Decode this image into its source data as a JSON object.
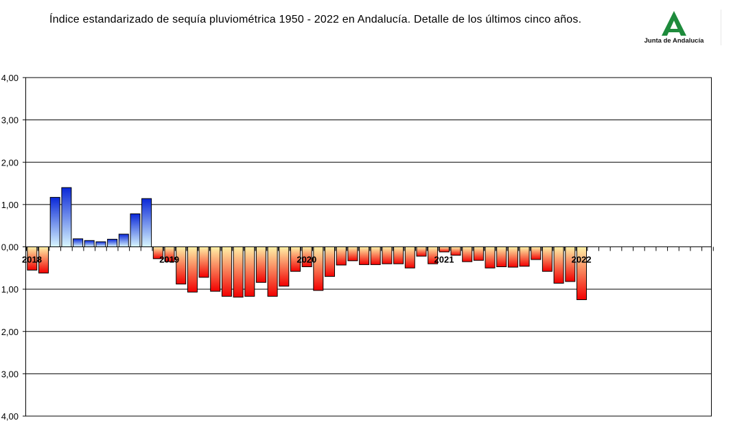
{
  "title": "Índice estandarizado de sequía pluviométrica 1950 - 2022 en Andalucía. Detalle de los últimos cinco años.",
  "logo": {
    "text": "Junta de Andalucía",
    "color": "#1e8b3c",
    "icon": "andalucia-a-icon"
  },
  "chart_data": {
    "type": "bar",
    "title": "Índice estandarizado de sequía pluviométrica 1950 - 2022 en Andalucía. Detalle de los últimos cinco años.",
    "xlabel": "",
    "ylabel": "",
    "ylim": [
      -4,
      4
    ],
    "yticks": [
      "4,00",
      "3,00",
      "2,00",
      "1,00",
      "0,00",
      "1,00",
      "2,00",
      "3,00",
      "4,00"
    ],
    "year_labels": [
      {
        "label": "2018",
        "index": 0
      },
      {
        "label": "2019",
        "index": 12
      },
      {
        "label": "2020",
        "index": 24
      },
      {
        "label": "2021",
        "index": 36
      },
      {
        "label": "2022",
        "index": 48
      }
    ],
    "total_slots": 60,
    "grid": true,
    "colors": {
      "positive_top": "#0a28d8",
      "positive_bottom": "#d8f6ff",
      "negative_top": "#fff2a8",
      "negative_bottom": "#f20000"
    },
    "values": [
      -0.55,
      -0.62,
      1.17,
      1.4,
      0.19,
      0.15,
      0.12,
      0.18,
      0.3,
      0.78,
      1.14,
      -0.28,
      -0.35,
      -0.88,
      -1.07,
      -0.72,
      -1.05,
      -1.17,
      -1.19,
      -1.17,
      -0.84,
      -1.17,
      -0.93,
      -0.58,
      -0.47,
      -1.03,
      -0.7,
      -0.43,
      -0.33,
      -0.42,
      -0.42,
      -0.4,
      -0.4,
      -0.5,
      -0.22,
      -0.4,
      -0.12,
      -0.2,
      -0.35,
      -0.32,
      -0.5,
      -0.47,
      -0.48,
      -0.46,
      -0.3,
      -0.58,
      -0.86,
      -0.82,
      -1.25
    ]
  }
}
